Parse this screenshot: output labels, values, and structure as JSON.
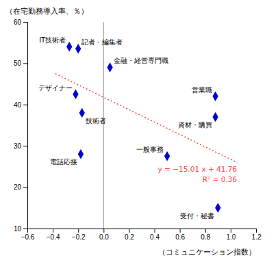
{
  "chart_data": {
    "type": "scatter",
    "x_label": "（コミュニケーション指数）",
    "y_label": "（在宅勤務導入率、％）",
    "x": [
      -0.27,
      -0.2,
      0.05,
      -0.22,
      -0.17,
      -0.18,
      0.5,
      0.88,
      0.88,
      0.9
    ],
    "values": [
      54.0,
      53.5,
      49.0,
      42.5,
      38.0,
      28.0,
      27.5,
      42.0,
      37.0,
      15.0
    ],
    "point_labels": [
      "IT技術者",
      "記者・編集者",
      "金融・経営専門職",
      "デザイナー",
      "技術者",
      "電話応接",
      "一般事務",
      "営業職",
      "資材・購買",
      "受付・秘書"
    ],
    "color": "#0000CD",
    "marker": "diamond",
    "regression": {
      "x": [
        -0.38,
        1.05
      ],
      "values": [
        47.4638,
        25.9995
      ],
      "color": "#FF4444",
      "line_style": "dotted"
    },
    "annotation": [
      "y = −15.01 x + 41.76",
      "R² = 0.36"
    ],
    "vlines": [
      0
    ],
    "xlim": [
      -0.6,
      1.2
    ],
    "ylim": [
      10,
      60
    ],
    "xticks": [
      {
        "value": -0.6,
        "label": "−0.6"
      },
      {
        "value": -0.4,
        "label": "−0.4"
      },
      {
        "value": -0.2,
        "label": "−0.2"
      },
      {
        "value": 0.0,
        "label": "0.0"
      },
      0.2,
      0.4,
      0.6,
      0.8,
      {
        "value": 1.0,
        "label": "1.0"
      },
      1.2
    ],
    "yticks": [
      10,
      20,
      30,
      40,
      50,
      60
    ]
  }
}
